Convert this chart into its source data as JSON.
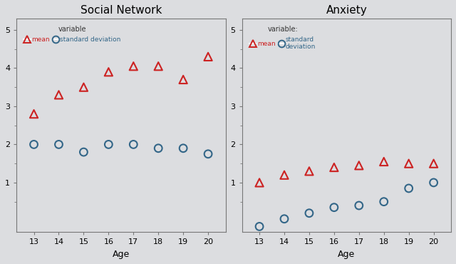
{
  "ages": [
    13,
    14,
    15,
    16,
    17,
    18,
    19,
    20
  ],
  "social_network": {
    "mean": [
      2.8,
      3.3,
      3.5,
      3.9,
      4.05,
      4.05,
      3.7,
      4.3
    ],
    "std": [
      2.0,
      2.0,
      1.8,
      2.0,
      2.0,
      1.9,
      1.9,
      1.75
    ]
  },
  "anxiety": {
    "mean": [
      1.0,
      1.2,
      1.3,
      1.4,
      1.45,
      1.55,
      1.5,
      1.5
    ],
    "std": [
      -0.15,
      0.05,
      0.2,
      0.35,
      0.4,
      0.5,
      0.85,
      1.0
    ]
  },
  "plot_titles": [
    "Social Network",
    "Anxiety"
  ],
  "xlabel": "Age",
  "ylim": [
    -0.3,
    5.3
  ],
  "yticks": [
    1,
    2,
    3,
    4,
    5
  ],
  "mean_color": "#cc2222",
  "std_color": "#336688",
  "bg_color": "#dcdde0",
  "legend_label_mean": "mean",
  "legend_label_std_1": "standard deviation",
  "legend_label_std_2": "standard\ndeviation",
  "legend_prefix_1": "variable",
  "legend_prefix_2": "variable:"
}
